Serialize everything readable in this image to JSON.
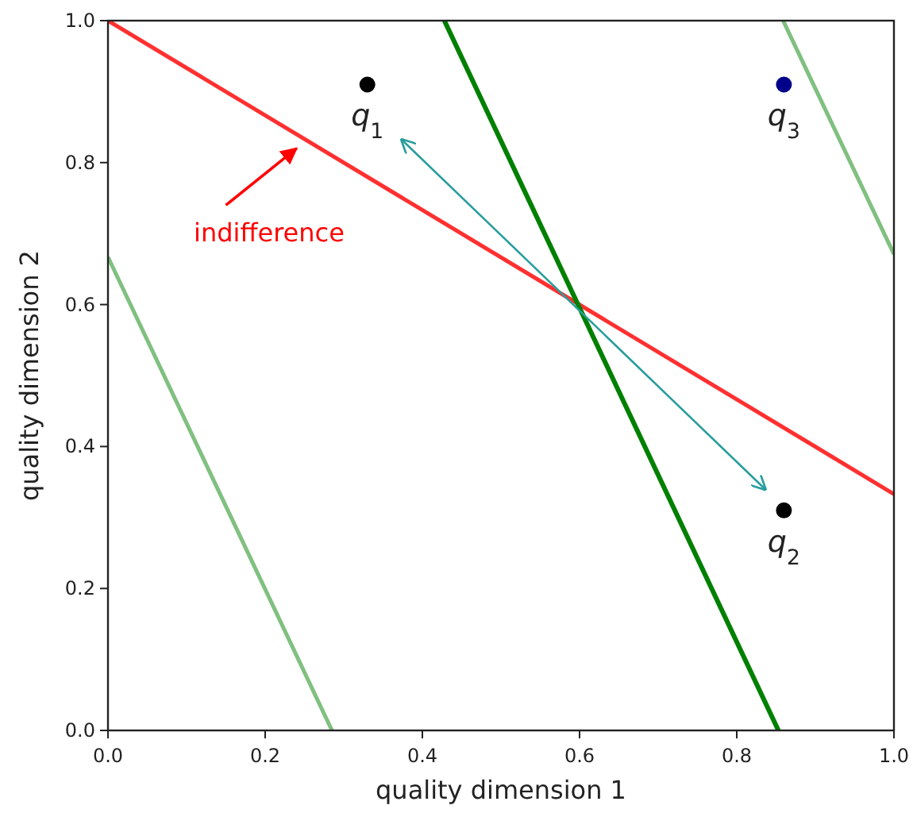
{
  "chart_data": {
    "type": "line",
    "xlabel": "quality dimension 1",
    "ylabel": "quality dimension 2",
    "xlim": [
      0,
      1
    ],
    "ylim": [
      0,
      1
    ],
    "xticks": [
      {
        "value": 0,
        "label": "0.0"
      },
      0.2,
      0.4,
      0.6,
      0.8,
      {
        "value": 1,
        "label": "1.0"
      }
    ],
    "yticks": [
      {
        "value": 0,
        "label": "0.0"
      },
      0.2,
      0.4,
      0.6,
      0.8,
      {
        "value": 1,
        "label": "1.0"
      }
    ],
    "grid": false,
    "series": [
      {
        "color": "#ff3030",
        "x": [
          0,
          1
        ],
        "values": [
          1,
          0.333
        ]
      },
      {
        "color": "#008000",
        "x": [
          0.428,
          0.853
        ],
        "values": [
          1,
          0
        ]
      },
      {
        "color": "#80c080",
        "x": [
          0,
          0.285
        ],
        "values": [
          0.667,
          0
        ]
      },
      {
        "color": "#80c080",
        "x": [
          0.859,
          1
        ],
        "values": [
          1,
          0.671
        ]
      },
      {
        "type": "scatter",
        "name": "q$_{1}$",
        "color": "#000000",
        "x": [
          0.33
        ],
        "values": [
          0.91
        ]
      },
      {
        "type": "scatter",
        "name": "q$_{2}$",
        "color": "#000000",
        "x": [
          0.86
        ],
        "values": [
          0.31
        ]
      },
      {
        "type": "scatter",
        "name": "q$_{3}$",
        "color": "#00008b",
        "x": [
          0.86
        ],
        "values": [
          0.91
        ]
      }
    ],
    "annotations": [
      "indifference"
    ]
  }
}
